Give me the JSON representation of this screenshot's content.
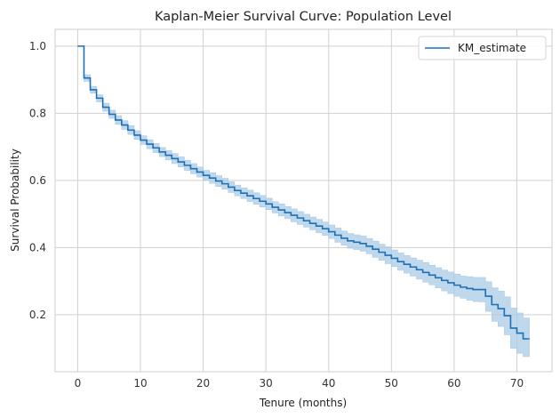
{
  "chart_data": {
    "type": "line",
    "title": "Kaplan-Meier Survival Curve: Population Level",
    "xlabel": "Tenure (months)",
    "ylabel": "Survival Probability",
    "xlim": [
      -3.6,
      75.6
    ],
    "ylim": [
      0.03,
      1.05
    ],
    "xticks": [
      0,
      10,
      20,
      30,
      40,
      50,
      60,
      70
    ],
    "yticks": [
      0.2,
      0.4,
      0.6,
      0.8,
      1.0
    ],
    "ytick_labels": [
      "0.2",
      "0.4",
      "0.6",
      "0.8",
      "1.0"
    ],
    "grid": true,
    "legend": {
      "position": "top-right",
      "entries": [
        "KM_estimate"
      ]
    },
    "colors": {
      "line": "#1f6fb4",
      "band": "#a9cbe6",
      "grid": "#d0d0d0",
      "spine": "#cccccc"
    },
    "series": [
      {
        "name": "KM_estimate",
        "step": "post",
        "x": [
          0,
          1,
          2,
          3,
          4,
          5,
          6,
          7,
          8,
          9,
          10,
          11,
          12,
          13,
          14,
          15,
          16,
          17,
          18,
          19,
          20,
          21,
          22,
          23,
          24,
          25,
          26,
          27,
          28,
          29,
          30,
          31,
          32,
          33,
          34,
          35,
          36,
          37,
          38,
          39,
          40,
          41,
          42,
          43,
          44,
          45,
          46,
          47,
          48,
          49,
          50,
          51,
          52,
          53,
          54,
          55,
          56,
          57,
          58,
          59,
          60,
          61,
          62,
          63,
          64,
          65,
          66,
          67,
          68,
          69,
          70,
          71,
          72
        ],
        "y": [
          1.0,
          0.905,
          0.87,
          0.845,
          0.818,
          0.797,
          0.78,
          0.765,
          0.75,
          0.735,
          0.72,
          0.708,
          0.697,
          0.685,
          0.675,
          0.665,
          0.655,
          0.645,
          0.635,
          0.625,
          0.615,
          0.607,
          0.598,
          0.59,
          0.58,
          0.57,
          0.562,
          0.554,
          0.546,
          0.538,
          0.53,
          0.52,
          0.512,
          0.504,
          0.496,
          0.488,
          0.48,
          0.472,
          0.464,
          0.456,
          0.447,
          0.437,
          0.428,
          0.42,
          0.416,
          0.412,
          0.404,
          0.395,
          0.386,
          0.377,
          0.368,
          0.358,
          0.35,
          0.342,
          0.334,
          0.326,
          0.318,
          0.31,
          0.302,
          0.295,
          0.288,
          0.282,
          0.278,
          0.275,
          0.275,
          0.255,
          0.23,
          0.218,
          0.197,
          0.16,
          0.145,
          0.128,
          0.128
        ],
        "ci_lower": [
          1.0,
          0.895,
          0.86,
          0.834,
          0.806,
          0.785,
          0.767,
          0.752,
          0.737,
          0.722,
          0.707,
          0.694,
          0.683,
          0.671,
          0.661,
          0.65,
          0.64,
          0.63,
          0.62,
          0.61,
          0.6,
          0.591,
          0.582,
          0.574,
          0.564,
          0.554,
          0.546,
          0.537,
          0.529,
          0.521,
          0.513,
          0.503,
          0.494,
          0.486,
          0.477,
          0.469,
          0.461,
          0.453,
          0.444,
          0.436,
          0.427,
          0.416,
          0.407,
          0.398,
          0.394,
          0.389,
          0.381,
          0.371,
          0.362,
          0.352,
          0.343,
          0.332,
          0.324,
          0.315,
          0.306,
          0.297,
          0.289,
          0.28,
          0.271,
          0.263,
          0.255,
          0.249,
          0.243,
          0.239,
          0.238,
          0.21,
          0.18,
          0.165,
          0.14,
          0.1,
          0.085,
          0.075,
          0.075
        ],
        "ci_upper": [
          1.0,
          0.915,
          0.88,
          0.855,
          0.83,
          0.809,
          0.793,
          0.778,
          0.763,
          0.748,
          0.733,
          0.721,
          0.71,
          0.698,
          0.689,
          0.68,
          0.67,
          0.66,
          0.65,
          0.64,
          0.63,
          0.623,
          0.614,
          0.606,
          0.596,
          0.586,
          0.578,
          0.571,
          0.563,
          0.555,
          0.547,
          0.537,
          0.53,
          0.522,
          0.515,
          0.507,
          0.499,
          0.491,
          0.484,
          0.476,
          0.467,
          0.458,
          0.449,
          0.442,
          0.438,
          0.435,
          0.427,
          0.419,
          0.41,
          0.402,
          0.393,
          0.384,
          0.376,
          0.369,
          0.362,
          0.355,
          0.347,
          0.34,
          0.333,
          0.327,
          0.321,
          0.315,
          0.313,
          0.311,
          0.311,
          0.298,
          0.28,
          0.27,
          0.253,
          0.22,
          0.205,
          0.19,
          0.19
        ]
      }
    ]
  }
}
